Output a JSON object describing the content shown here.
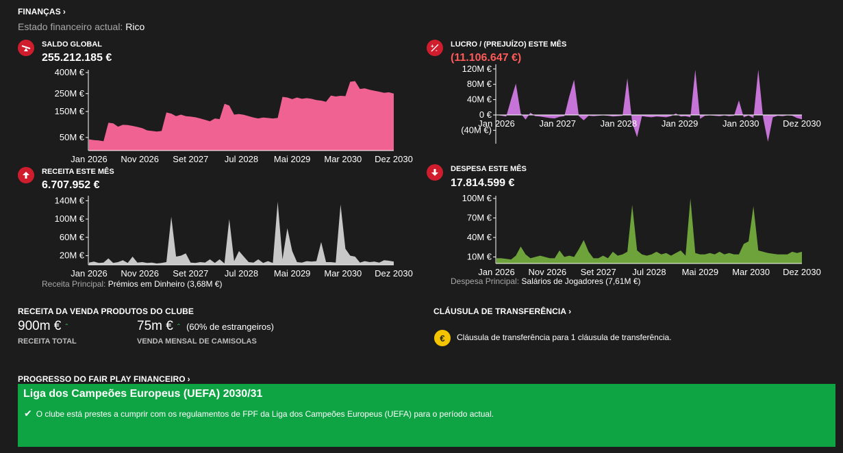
{
  "finances": {
    "title": "FINANÇAS",
    "status_label": "Estado financeiro actual:",
    "status_value": "Rico"
  },
  "balance": {
    "title": "SALDO GLOBAL",
    "value": "255.212.185 €"
  },
  "profit": {
    "title": "LUCRO / (PREJUÍZO) ESTE MÊS",
    "value": "(11.106.647 €)"
  },
  "revenue": {
    "title": "RECEITA ESTE MÊS",
    "value": "6.707.952 €",
    "main_label": "Receita Principal:",
    "main_value": "Prémios em Dinheiro (3,68M €)"
  },
  "expense": {
    "title": "DESPESA ESTE MÊS",
    "value": "17.814.599 €",
    "main_label": "Despesa Principal:",
    "main_value": "Salários de Jogadores (7,61M €)"
  },
  "club_products": {
    "title": "RECEITA DA VENDA PRODUTOS DO CLUBE",
    "total_value": "900m €",
    "total_label": "RECEITA TOTAL",
    "shirts_value": "75m €",
    "shirts_note": "(60% de estrangeiros)",
    "shirts_label": "VENDA MENSAL DE CAMISOLAS"
  },
  "transfer_clause": {
    "title": "CLÁUSULA DE TRANSFERÊNCIA",
    "text": "Cláusula de transferência para 1 cláusula de transferência."
  },
  "ffp": {
    "title": "PROGRESSO DO FAIR PLAY FINANCEIRO",
    "competition": "Liga dos Campeões Europeus (UEFA) 2030/31",
    "message": "O clube está prestes a cumprir com os regulamentos de FPF da Liga dos Campeões Europeus (UEFA) para o período actual."
  },
  "colors": {
    "balance": "#f06292",
    "profit": "#c774d8",
    "revenue": "#c8c8c8",
    "expense": "#6ea23a",
    "ffp_bg": "#0ea443",
    "icon": "#d01d2e"
  },
  "chart_data": [
    {
      "id": "balance",
      "type": "area",
      "title": "SALDO GLOBAL",
      "unit": "M €",
      "ylim": [
        20,
        400
      ],
      "yscale": "sqrt",
      "yticks": [
        50,
        150,
        250,
        400
      ],
      "ytick_labels": [
        "50M €",
        "150M €",
        "250M €",
        "400M €"
      ],
      "xticks": [
        "Jan 2026",
        "Nov 2026",
        "Set 2027",
        "Jul 2028",
        "Mai 2029",
        "Mar 2030",
        "Dez 2030"
      ],
      "values": [
        45,
        43,
        42,
        40,
        100,
        98,
        85,
        92,
        91,
        88,
        84,
        80,
        72,
        70,
        68,
        70,
        145,
        140,
        128,
        135,
        128,
        126,
        123,
        118,
        112,
        106,
        118,
        115,
        190,
        180,
        135,
        138,
        134,
        128,
        122,
        118,
        122,
        120,
        118,
        120,
        230,
        226,
        216,
        226,
        218,
        222,
        218,
        211,
        208,
        201,
        238,
        232,
        236,
        234,
        330,
        335,
        280,
        284,
        275,
        268,
        262,
        255,
        258,
        250
      ]
    },
    {
      "id": "profit",
      "type": "area",
      "title": "LUCRO / (PREJUÍZO) ESTE MÊS",
      "unit": "M €",
      "ylim": [
        -75,
        125
      ],
      "yticks": [
        -40,
        0,
        40,
        80,
        120
      ],
      "ytick_labels": [
        "(40M €)",
        "0 €",
        "40M €",
        "80M €",
        "120M €"
      ],
      "xticks": [
        "Jan 2026",
        "Jan 2027",
        "Jan 2028",
        "Jan 2029",
        "Jan 2030",
        "Dez 2030"
      ],
      "values": [
        0,
        -2,
        -4,
        40,
        82,
        4,
        -12,
        6,
        -3,
        -4,
        -6,
        -8,
        -9,
        -5,
        -3,
        48,
        92,
        -3,
        -14,
        -2,
        -3,
        -2,
        -1,
        -2,
        -4,
        -3,
        -2,
        96,
        -20,
        -58,
        -3,
        -5,
        -6,
        -4,
        -5,
        -6,
        -3,
        4,
        -4,
        -3,
        -6,
        118,
        -10,
        -2,
        -1,
        -2,
        -3,
        -1,
        -3,
        -2,
        38,
        -6,
        -1,
        -8,
        118,
        -8,
        -70,
        -6,
        -2,
        -3,
        -1,
        -2,
        -8,
        -11
      ]
    },
    {
      "id": "revenue",
      "type": "area",
      "title": "RECEITA ESTE MÊS",
      "unit": "M €",
      "ylim": [
        0,
        145
      ],
      "yticks": [
        20,
        60,
        100,
        140
      ],
      "ytick_labels": [
        "20M €",
        "60M €",
        "100M €",
        "140M €"
      ],
      "xticks": [
        "Jan 2026",
        "Nov 2026",
        "Set 2027",
        "Jul 2028",
        "Mai 2029",
        "Mar 2030",
        "Dez 2030"
      ],
      "values": [
        5,
        7,
        4,
        5,
        14,
        4,
        6,
        10,
        4,
        18,
        5,
        6,
        4,
        5,
        3,
        4,
        6,
        105,
        18,
        20,
        25,
        5,
        4,
        6,
        5,
        12,
        4,
        12,
        3,
        100,
        8,
        30,
        18,
        6,
        5,
        12,
        4,
        8,
        4,
        138,
        12,
        80,
        30,
        6,
        5,
        8,
        7,
        8,
        50,
        6,
        6,
        5,
        132,
        35,
        20,
        18,
        5,
        8,
        6,
        7,
        5,
        10,
        9,
        7
      ]
    },
    {
      "id": "expense",
      "type": "area",
      "title": "DESPESA ESTE MÊS",
      "unit": "M €",
      "ylim": [
        0,
        100
      ],
      "yticks": [
        10,
        40,
        70,
        100
      ],
      "ytick_labels": [
        "10M €",
        "40M €",
        "70M €",
        "100M €"
      ],
      "xticks": [
        "Jan 2026",
        "Nov 2026",
        "Set 2027",
        "Jul 2028",
        "Mai 2029",
        "Mar 2030",
        "Dez 2030"
      ],
      "values": [
        8,
        8,
        7,
        6,
        12,
        26,
        14,
        8,
        10,
        12,
        10,
        8,
        8,
        20,
        10,
        12,
        10,
        22,
        36,
        18,
        8,
        8,
        12,
        8,
        18,
        12,
        14,
        18,
        90,
        20,
        14,
        12,
        14,
        18,
        14,
        16,
        12,
        16,
        20,
        12,
        100,
        16,
        14,
        14,
        16,
        14,
        18,
        14,
        16,
        14,
        14,
        30,
        34,
        88,
        20,
        18,
        16,
        15,
        14,
        14,
        14,
        18,
        16,
        18
      ]
    }
  ]
}
